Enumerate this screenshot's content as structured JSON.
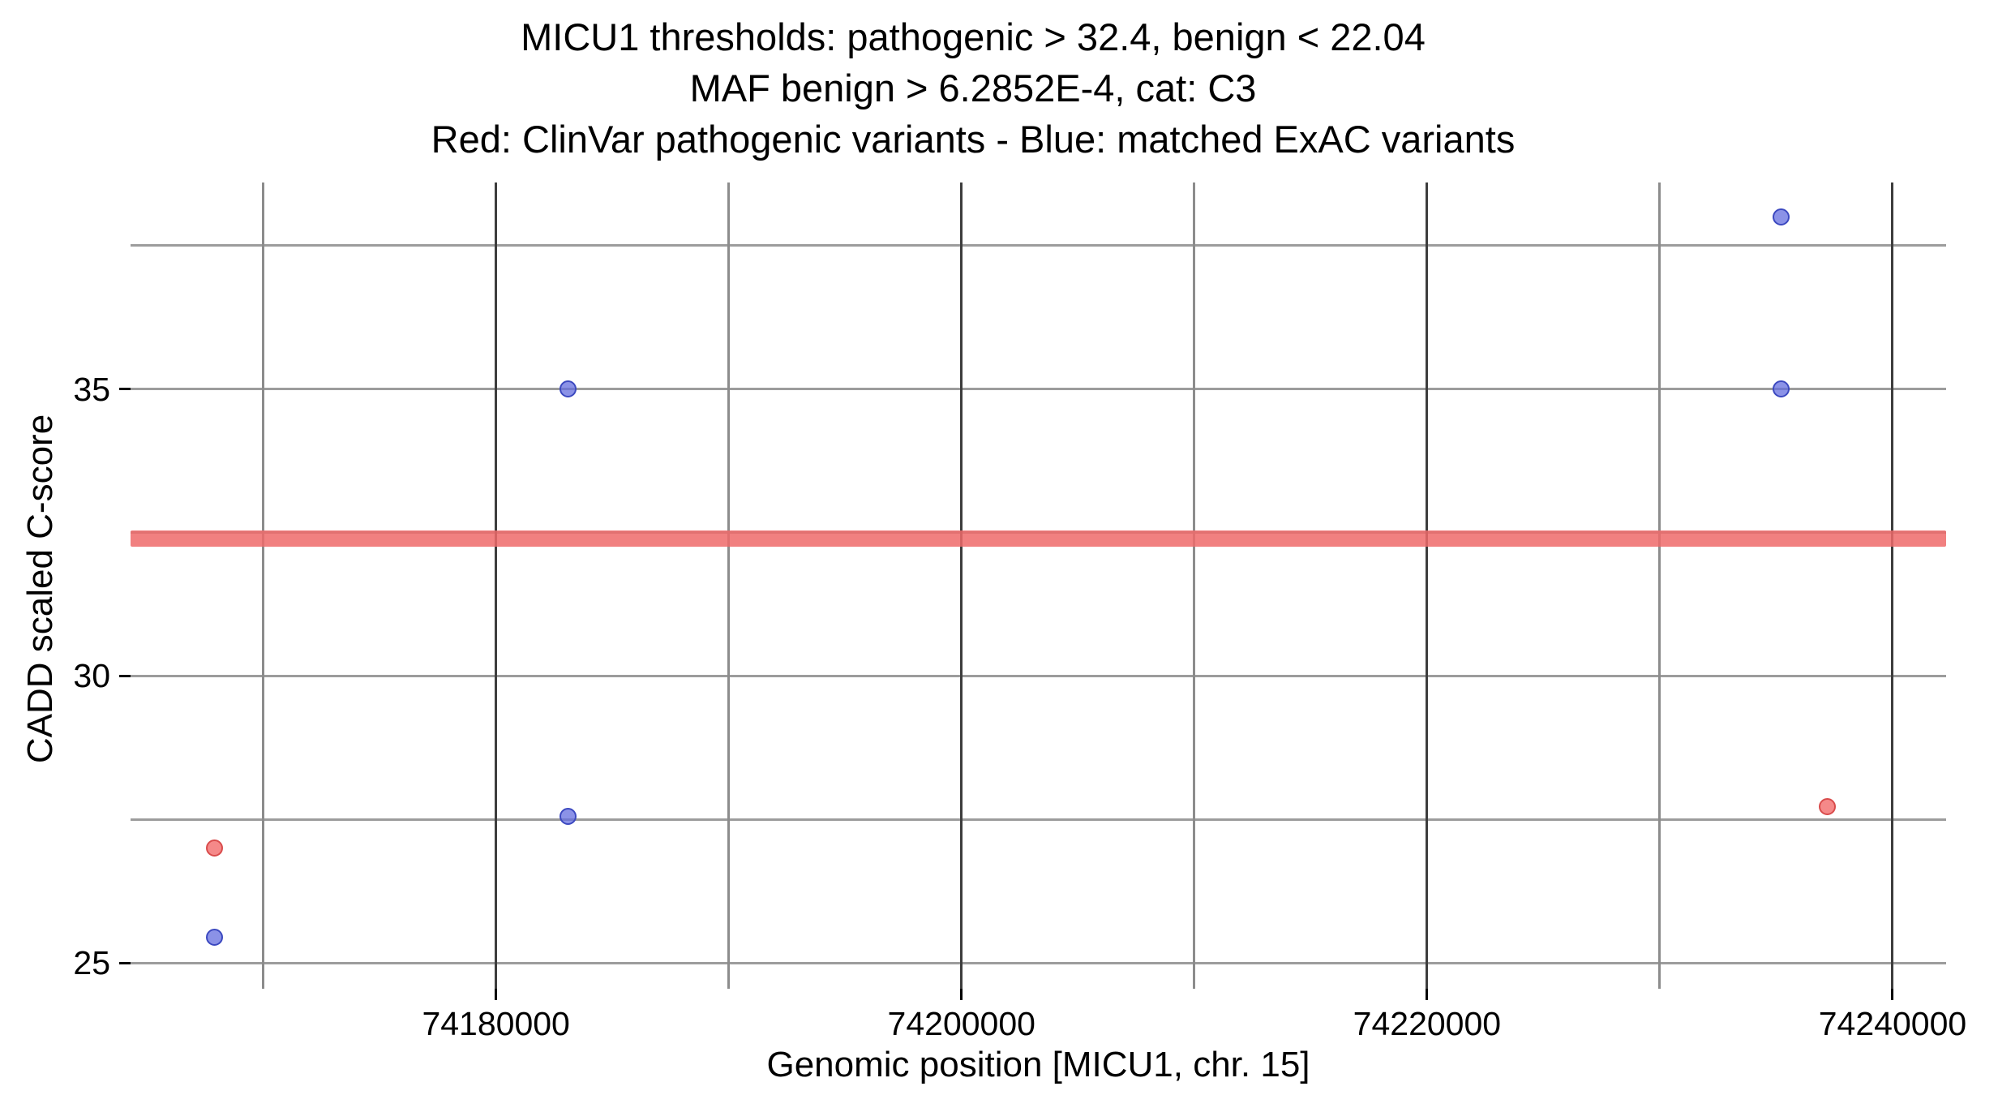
{
  "chart_data": {
    "type": "scatter",
    "title_lines": [
      "MICU1 thresholds: pathogenic > 32.4, benign < 22.04",
      "MAF benign > 6.2852E-4, cat: C3",
      "Red: ClinVar pathogenic variants - Blue: matched ExAC variants"
    ],
    "xlabel": "Genomic position [MICU1, chr. 15]",
    "ylabel": "CADD scaled C-score",
    "x_range": [
      74164300,
      74242300
    ],
    "y_range": [
      24.55,
      38.6
    ],
    "x_ticks": [
      {
        "value": 74180000,
        "label": "74180000"
      },
      {
        "value": 74200000,
        "label": "74200000"
      },
      {
        "value": 74220000,
        "label": "74220000"
      },
      {
        "value": 74240000,
        "label": "74240000"
      }
    ],
    "x_minor_gridlines": [
      74170000,
      74190000,
      74210000,
      74230000
    ],
    "y_ticks": [
      {
        "value": 25,
        "label": "25"
      },
      {
        "value": 30,
        "label": "30"
      },
      {
        "value": 35,
        "label": "35"
      }
    ],
    "y_gridlines": [
      25,
      27.5,
      30,
      32.5,
      35,
      37.5
    ],
    "threshold_band": {
      "y": 32.4,
      "color": "rgba(238,106,106,0.85)",
      "meaning": "pathogenic threshold 32.4"
    },
    "series": [
      {
        "name": "ClinVar pathogenic variants",
        "stroke": "#d94c4c",
        "fill": "rgba(242,98,98,0.75)",
        "points": [
          [
            74167900,
            27.0
          ],
          [
            74237200,
            27.73
          ]
        ]
      },
      {
        "name": "matched ExAC variants",
        "stroke": "#3c49c0",
        "fill": "rgba(100,110,223,0.75)",
        "points": [
          [
            74167900,
            25.45
          ],
          [
            74183100,
            27.55
          ],
          [
            74183100,
            35.0
          ],
          [
            74235200,
            35.0
          ],
          [
            74235200,
            38.0
          ]
        ]
      }
    ],
    "grid": true,
    "legend_position": "none"
  }
}
